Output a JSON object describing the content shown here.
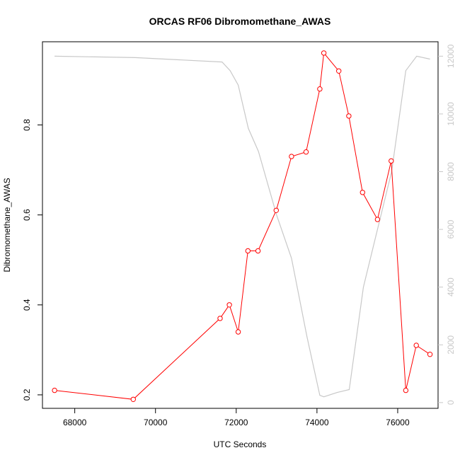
{
  "chart_data": {
    "type": "line",
    "title": "ORCAS RF06 Dibromomethane_AWAS",
    "xlabel": "UTC Seconds",
    "ylabel": "Dibromomethane_AWAS",
    "xlim": [
      67200,
      77000
    ],
    "ylim": [
      0.17,
      0.985
    ],
    "y2lim": [
      -200,
      12500
    ],
    "x_ticks": [
      68000,
      70000,
      72000,
      74000,
      76000
    ],
    "y_ticks": [
      0.2,
      0.4,
      0.6,
      0.8
    ],
    "y2_ticks": [
      0,
      2000,
      4000,
      6000,
      8000,
      10000,
      12000
    ],
    "colors": {
      "primary": "#ff0000",
      "secondary": "#c8c8c8",
      "axis": "#000000"
    },
    "series": [
      {
        "values": [
          {
            "x": 67500,
            "y": 0.21
          },
          {
            "x": 69450,
            "y": 0.19
          },
          {
            "x": 71600,
            "y": 0.37
          },
          {
            "x": 71830,
            "y": 0.4
          },
          {
            "x": 72050,
            "y": 0.34
          },
          {
            "x": 72290,
            "y": 0.52
          },
          {
            "x": 72540,
            "y": 0.52
          },
          {
            "x": 72990,
            "y": 0.61
          },
          {
            "x": 73370,
            "y": 0.73
          },
          {
            "x": 73730,
            "y": 0.74
          },
          {
            "x": 74070,
            "y": 0.88
          },
          {
            "x": 74170,
            "y": 0.96
          },
          {
            "x": 74540,
            "y": 0.92
          },
          {
            "x": 74790,
            "y": 0.82
          },
          {
            "x": 75130,
            "y": 0.65
          },
          {
            "x": 75500,
            "y": 0.59
          },
          {
            "x": 75840,
            "y": 0.72
          },
          {
            "x": 76200,
            "y": 0.21
          },
          {
            "x": 76460,
            "y": 0.31
          },
          {
            "x": 76800,
            "y": 0.29
          }
        ]
      },
      {
        "values": [
          {
            "x": 67500,
            "y": 12000
          },
          {
            "x": 69500,
            "y": 11950
          },
          {
            "x": 71650,
            "y": 11800
          },
          {
            "x": 71850,
            "y": 11500
          },
          {
            "x": 72050,
            "y": 11000
          },
          {
            "x": 72300,
            "y": 9500
          },
          {
            "x": 72550,
            "y": 8700
          },
          {
            "x": 73000,
            "y": 6500
          },
          {
            "x": 73370,
            "y": 5000
          },
          {
            "x": 73750,
            "y": 2300
          },
          {
            "x": 74070,
            "y": 250
          },
          {
            "x": 74170,
            "y": 200
          },
          {
            "x": 74500,
            "y": 350
          },
          {
            "x": 74800,
            "y": 450
          },
          {
            "x": 75150,
            "y": 4000
          },
          {
            "x": 75500,
            "y": 6000
          },
          {
            "x": 75850,
            "y": 8000
          },
          {
            "x": 76200,
            "y": 11500
          },
          {
            "x": 76470,
            "y": 12000
          },
          {
            "x": 76800,
            "y": 11900
          }
        ]
      }
    ]
  }
}
